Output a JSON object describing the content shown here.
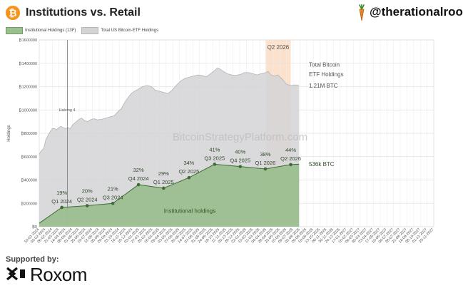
{
  "header": {
    "title": "Institutions vs. Retail",
    "handle": "@therationalroot",
    "btc_symbol": "₿"
  },
  "legend": {
    "items": [
      {
        "label": "Institutional Holdings (13F)",
        "color": "#9bbf8f"
      },
      {
        "label": "Total US Bitcoin-ETF Holdings",
        "color": "#d4d4d6"
      }
    ]
  },
  "footer": {
    "supported_by": "Supported by:",
    "sponsor": "Roxom"
  },
  "chart_data": {
    "type": "area",
    "ylabel": "Holdings",
    "watermark": "BitcoinStrategyPlatform.com",
    "ylim": [
      0,
      1600000
    ],
    "y_ticks": [
      0,
      200000,
      400000,
      600000,
      800000,
      1000000,
      1200000,
      1400000,
      1600000
    ],
    "y_tick_labels": [
      "₿0",
      "₿200000",
      "₿400000",
      "₿600000",
      "₿800000",
      "₿1000000",
      "₿1200000",
      "₿1400000",
      "₿1600000"
    ],
    "x_tick_labels": [
      "10-01-2024",
      "02-02-2024",
      "26-02-2024",
      "21-03-2024",
      "14-04-2024",
      "08-05-2024",
      "01-06-2024",
      "25-06-2024",
      "19-07-2024",
      "12-08-2024",
      "05-09-2024",
      "29-09-2024",
      "23-10-2024",
      "16-11-2024",
      "10-12-2024",
      "03-01-2025",
      "27-01-2025",
      "20-02-2025",
      "16-03-2025",
      "09-04-2025",
      "03-05-2025",
      "27-05-2025",
      "20-06-2025",
      "14-07-2025",
      "07-08-2025",
      "31-08-2025",
      "24-09-2025",
      "18-10-2025",
      "11-11-2025",
      "05-12-2025",
      "29-12-2025",
      "22-01-2026",
      "15-02-2026",
      "11-03-2026",
      "04-04-2026",
      "28-04-2026",
      "22-05-2026",
      "15-06-2026",
      "09-07-2026",
      "02-08-2026",
      "26-08-2026",
      "19-09-2026",
      "13-10-2026",
      "06-11-2026",
      "30-11-2026",
      "24-12-2026",
      "17-01-2027",
      "10-02-2027",
      "06-03-2027",
      "30-03-2027",
      "23-04-2027",
      "17-05-2027",
      "10-06-2027",
      "04-07-2027",
      "28-07-2027",
      "21-08-2027",
      "14-09-2027",
      "08-10-2027",
      "01-11-2027",
      "25-11-2027"
    ],
    "series": [
      {
        "name": "Total US Bitcoin-ETF Holdings",
        "color": "#d4d4d6",
        "x": [
          "10-01-2024",
          "17-01-2024",
          "26-01-2024",
          "02-02-2024",
          "12-02-2024",
          "20-02-2024",
          "26-02-2024",
          "05-03-2024",
          "12-03-2024",
          "21-03-2024",
          "28-03-2024",
          "05-04-2024",
          "14-04-2024",
          "22-04-2024",
          "01-05-2024",
          "08-05-2024",
          "17-05-2024",
          "01-06-2024",
          "10-06-2024",
          "20-06-2024",
          "01-07-2024",
          "15-07-2024",
          "25-07-2024",
          "05-08-2024",
          "20-08-2024",
          "05-09-2024",
          "20-09-2024",
          "05-10-2024",
          "20-10-2024",
          "30-10-2024",
          "08-11-2024",
          "16-11-2024",
          "25-11-2024",
          "05-12-2024",
          "16-12-2024",
          "01-01-2025",
          "15-01-2025",
          "01-02-2025",
          "16-02-2025",
          "01-03-2025",
          "16-03-2025",
          "01-04-2025",
          "15-04-2025",
          "01-05-2025",
          "15-05-2025",
          "01-06-2025",
          "15-06-2025",
          "01-07-2025",
          "15-07-2025",
          "01-08-2025",
          "15-08-2025",
          "01-09-2025",
          "15-09-2025",
          "01-10-2025",
          "10-10-2025",
          "20-10-2025",
          "01-11-2025",
          "15-11-2025",
          "01-12-2025",
          "15-12-2025",
          "01-01-2026",
          "15-01-2026",
          "01-02-2026",
          "15-02-2026",
          "01-03-2026",
          "15-03-2026",
          "01-04-2026",
          "10-04-2026",
          "20-04-2026",
          "01-05-2026",
          "15-05-2026",
          "01-06-2026",
          "15-06-2026",
          "01-07-2026",
          "15-07-2026",
          "30-07-2026"
        ],
        "values": [
          620000,
          650000,
          670000,
          740000,
          790000,
          820000,
          840000,
          840000,
          830000,
          850000,
          860000,
          850000,
          840000,
          850000,
          840000,
          870000,
          890000,
          920000,
          930000,
          910000,
          900000,
          920000,
          925000,
          915000,
          920000,
          930000,
          940000,
          950000,
          990000,
          1010000,
          1050000,
          1080000,
          1110000,
          1140000,
          1160000,
          1180000,
          1200000,
          1210000,
          1200000,
          1170000,
          1160000,
          1150000,
          1140000,
          1170000,
          1210000,
          1250000,
          1270000,
          1280000,
          1290000,
          1300000,
          1295000,
          1285000,
          1310000,
          1340000,
          1360000,
          1350000,
          1330000,
          1310000,
          1300000,
          1295000,
          1305000,
          1320000,
          1320000,
          1310000,
          1300000,
          1310000,
          1320000,
          1330000,
          1300000,
          1290000,
          1300000,
          1260000,
          1220000,
          1210000,
          1215000,
          1210000
        ]
      },
      {
        "name": "Institutional Holdings (13F)",
        "color": "#9bbf8f",
        "x": [
          "10-01-2024",
          "31-03-2024",
          "30-06-2024",
          "30-09-2024",
          "31-12-2024",
          "31-03-2025",
          "30-06-2025",
          "30-09-2025",
          "31-12-2025",
          "31-03-2026",
          "30-06-2026",
          "30-07-2026"
        ],
        "values": [
          30000,
          165000,
          180000,
          200000,
          360000,
          330000,
          420000,
          535000,
          515000,
          495000,
          532000,
          536000
        ],
        "point_labels": [
          {
            "pct": "19%",
            "quarter": "Q1 2024"
          },
          {
            "pct": "20%",
            "quarter": "Q2 2024"
          },
          {
            "pct": "21%",
            "quarter": "Q3 2024"
          },
          {
            "pct": "32%",
            "quarter": "Q4 2024"
          },
          {
            "pct": "29%",
            "quarter": "Q1 2025"
          },
          {
            "pct": "34%",
            "quarter": "Q2 2025"
          },
          {
            "pct": "41%",
            "quarter": "Q3 2025"
          },
          {
            "pct": "40%",
            "quarter": "Q4 2025"
          },
          {
            "pct": "38%",
            "quarter": "Q1 2026"
          },
          {
            "pct": "44%",
            "quarter": "Q2 2026"
          }
        ]
      }
    ],
    "annotations": {
      "halving": {
        "label": "Halving 4",
        "x": "20-04-2024"
      },
      "highlight": {
        "label": "Q2 2026",
        "from": "01-04-2026",
        "to": "30-06-2026",
        "color": "#fbd9c0"
      },
      "total_label": [
        "Total Bitcoin",
        "ETF Holdings"
      ],
      "total_value": "1.21M BTC",
      "inst_value": "536k BTC",
      "inst_area_label": "Institutional holdings"
    }
  }
}
